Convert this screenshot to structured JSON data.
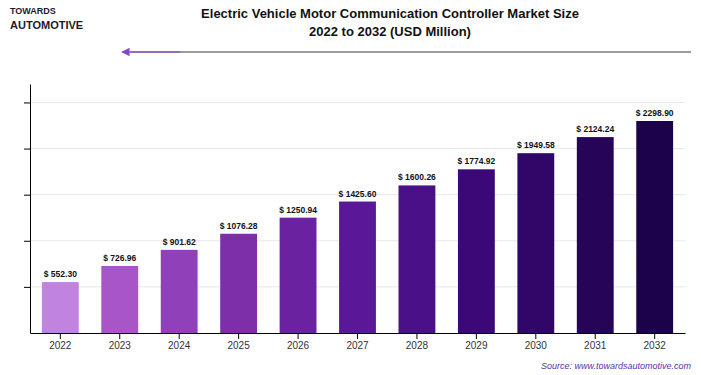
{
  "chart_data": {
    "type": "bar",
    "title": "Electric Vehicle Motor Communication Controller Market Size",
    "subtitle": "2022 to 2032 (USD Million)",
    "categories": [
      "2022",
      "2023",
      "2024",
      "2025",
      "2026",
      "2027",
      "2028",
      "2029",
      "2030",
      "2031",
      "2032"
    ],
    "values": [
      552.3,
      726.96,
      901.62,
      1076.28,
      1250.94,
      1425.6,
      1600.26,
      1774.92,
      1949.58,
      2124.24,
      2298.9
    ],
    "value_labels": [
      "$ 552.30",
      "$ 726.96",
      "$ 901.62",
      "$ 1076.28",
      "$ 1250.94",
      "$ 1425.60",
      "$ 1600.26",
      "$ 1774.92",
      "$ 1949.58",
      "$ 2124.24",
      "$ 2298.90"
    ],
    "data_labels": true,
    "colors": [
      "#c084e0",
      "#a855c8",
      "#9040b8",
      "#7c2fa8",
      "#6a22a0",
      "#5a1898",
      "#4a1088",
      "#3c0878",
      "#300668",
      "#260458",
      "#1c0248"
    ],
    "ylim": [
      0,
      2700
    ],
    "yticks": [
      500,
      1000,
      1500,
      2000,
      2500
    ],
    "grid": true,
    "tick_labels": "x",
    "annotations": [
      "TOWARDS",
      "AUTOMOTIVE"
    ],
    "source": "Source: www.towardsautomotive.com"
  }
}
